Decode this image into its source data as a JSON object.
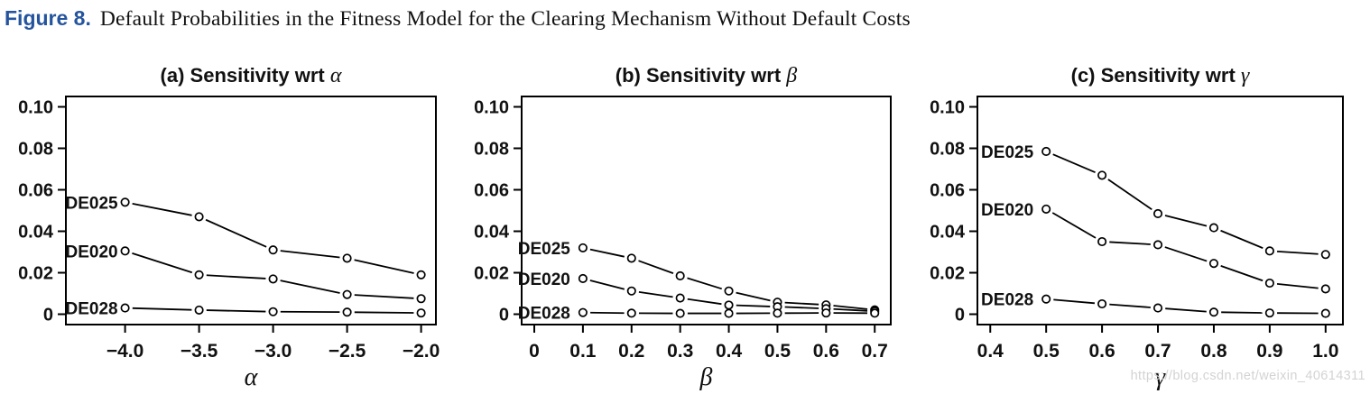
{
  "figure": {
    "label": "Figure 8.",
    "title": "Default Probabilities in the Fitness Model for the Clearing Mechanism Without Default Costs"
  },
  "watermark": "https://blog.csdn.net/weixin_40614311",
  "colors": {
    "figure_label": "#25549e",
    "plot": "#000000",
    "watermark": "#d3d3d3"
  },
  "chart_data": [
    {
      "type": "line",
      "title": "(a) Sensitivity wrt α",
      "title_prefix": "(a) Sensitivity wrt ",
      "symbol": "α",
      "xlabel": "α",
      "marker": "open-circle",
      "grid": false,
      "x": [
        -4.0,
        -3.5,
        -3.0,
        -2.5,
        -2.0
      ],
      "series": [
        {
          "name": "DE025",
          "values": [
            0.054,
            0.047,
            0.031,
            0.027,
            0.019
          ]
        },
        {
          "name": "DE020",
          "values": [
            0.0305,
            0.019,
            0.017,
            0.0095,
            0.0075
          ]
        },
        {
          "name": "DE028",
          "values": [
            0.003,
            0.002,
            0.0012,
            0.001,
            0.0006
          ]
        }
      ],
      "xlim": [
        -4.4,
        -1.9
      ],
      "ylim": [
        -0.005,
        0.105
      ],
      "xticks": [
        {
          "v": -4.0,
          "label": "−4.0"
        },
        {
          "v": -3.5,
          "label": "−3.5"
        },
        {
          "v": -3.0,
          "label": "−3.0"
        },
        {
          "v": -2.5,
          "label": "−2.5"
        },
        {
          "v": -2.0,
          "label": "−2.0"
        }
      ],
      "yticks": [
        {
          "v": 0,
          "label": "0"
        },
        {
          "v": 0.02,
          "label": "0.02"
        },
        {
          "v": 0.04,
          "label": "0.04"
        },
        {
          "v": 0.06,
          "label": "0.06"
        },
        {
          "v": 0.08,
          "label": "0.08"
        },
        {
          "v": 0.1,
          "label": "0.10"
        }
      ]
    },
    {
      "type": "line",
      "title": "(b) Sensitivity wrt β",
      "title_prefix": "(b) Sensitivity wrt ",
      "symbol": "β",
      "xlabel": "β",
      "marker": "open-circle",
      "grid": false,
      "x": [
        0.1,
        0.2,
        0.3,
        0.4,
        0.5,
        0.6,
        0.7
      ],
      "series": [
        {
          "name": "DE025",
          "values": [
            0.032,
            0.027,
            0.0185,
            0.0112,
            0.0058,
            0.0045,
            0.0021
          ]
        },
        {
          "name": "DE020",
          "values": [
            0.0172,
            0.0112,
            0.0078,
            0.0044,
            0.0036,
            0.0027,
            0.0014
          ]
        },
        {
          "name": "DE028",
          "values": [
            0.0008,
            0.0005,
            0.0004,
            0.0004,
            0.0005,
            0.0006,
            0.0005
          ]
        }
      ],
      "xlim": [
        -0.026,
        0.733
      ],
      "ylim": [
        -0.005,
        0.105
      ],
      "xticks": [
        {
          "v": 0,
          "label": "0"
        },
        {
          "v": 0.1,
          "label": "0.1"
        },
        {
          "v": 0.2,
          "label": "0.2"
        },
        {
          "v": 0.3,
          "label": "0.3"
        },
        {
          "v": 0.4,
          "label": "0.4"
        },
        {
          "v": 0.5,
          "label": "0.5"
        },
        {
          "v": 0.6,
          "label": "0.6"
        },
        {
          "v": 0.7,
          "label": "0.7"
        }
      ],
      "yticks": [
        {
          "v": 0,
          "label": "0"
        },
        {
          "v": 0.02,
          "label": "0.02"
        },
        {
          "v": 0.04,
          "label": "0.04"
        },
        {
          "v": 0.06,
          "label": "0.06"
        },
        {
          "v": 0.08,
          "label": "0.08"
        },
        {
          "v": 0.1,
          "label": "0.10"
        }
      ]
    },
    {
      "type": "line",
      "title": "(c) Sensitivity wrt γ",
      "title_prefix": "(c) Sensitivity wrt ",
      "symbol": "γ",
      "xlabel": "γ",
      "marker": "open-circle",
      "grid": false,
      "x": [
        0.5,
        0.6,
        0.7,
        0.8,
        0.9,
        1.0
      ],
      "series": [
        {
          "name": "DE025",
          "values": [
            0.0785,
            0.067,
            0.0485,
            0.0417,
            0.0305,
            0.0288
          ]
        },
        {
          "name": "DE020",
          "values": [
            0.0507,
            0.035,
            0.0335,
            0.0245,
            0.015,
            0.0122
          ]
        },
        {
          "name": "DE028",
          "values": [
            0.0073,
            0.005,
            0.003,
            0.001,
            0.0006,
            0.0004
          ]
        }
      ],
      "xlim": [
        0.377,
        1.031
      ],
      "ylim": [
        -0.005,
        0.105
      ],
      "xticks": [
        {
          "v": 0.4,
          "label": "0.4"
        },
        {
          "v": 0.5,
          "label": "0.5"
        },
        {
          "v": 0.6,
          "label": "0.6"
        },
        {
          "v": 0.7,
          "label": "0.7"
        },
        {
          "v": 0.8,
          "label": "0.8"
        },
        {
          "v": 0.9,
          "label": "0.9"
        },
        {
          "v": 1.0,
          "label": "1.0"
        }
      ],
      "yticks": [
        {
          "v": 0,
          "label": "0"
        },
        {
          "v": 0.02,
          "label": "0.02"
        },
        {
          "v": 0.04,
          "label": "0.04"
        },
        {
          "v": 0.06,
          "label": "0.06"
        },
        {
          "v": 0.08,
          "label": "0.08"
        },
        {
          "v": 0.1,
          "label": "0.10"
        }
      ]
    }
  ]
}
